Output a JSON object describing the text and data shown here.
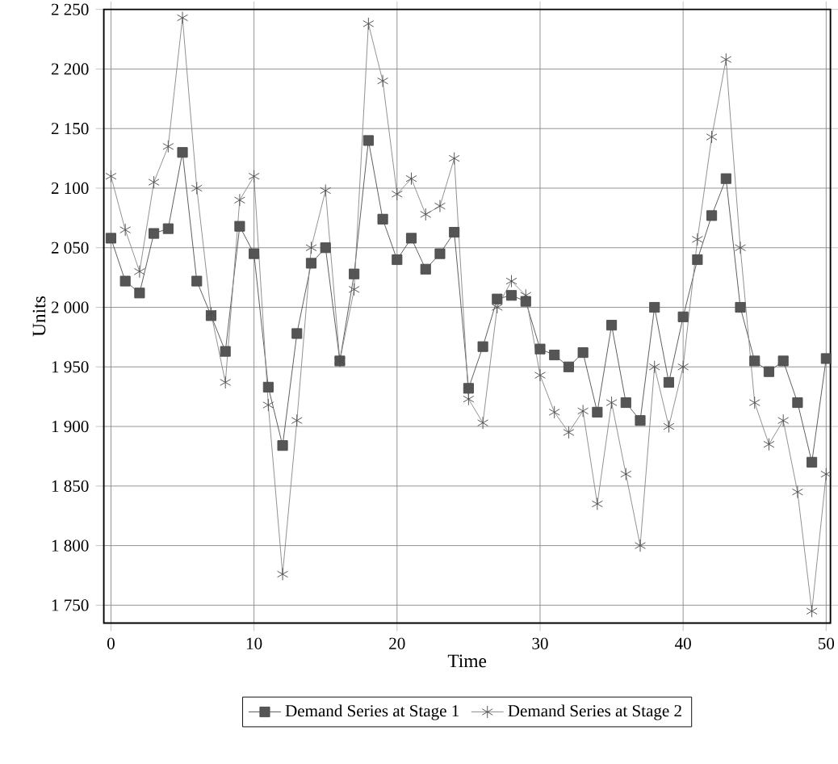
{
  "chart_data": {
    "type": "line",
    "xlabel": "Time",
    "ylabel": "Units",
    "x": [
      0,
      1,
      2,
      3,
      4,
      5,
      6,
      7,
      8,
      9,
      10,
      11,
      12,
      13,
      14,
      15,
      16,
      17,
      18,
      19,
      20,
      21,
      22,
      23,
      24,
      25,
      26,
      27,
      28,
      29,
      30,
      31,
      32,
      33,
      34,
      35,
      36,
      37,
      38,
      39,
      40,
      41,
      42,
      43,
      44,
      45,
      46,
      47,
      48,
      49,
      50
    ],
    "series": [
      {
        "name": "Demand Series at Stage 1",
        "color": "#555555",
        "marker": "square",
        "values": [
          2058,
          2022,
          2012,
          2062,
          2066,
          2130,
          2022,
          1993,
          1963,
          2068,
          2045,
          1933,
          1884,
          1978,
          2037,
          2050,
          1955,
          2028,
          2140,
          2074,
          2040,
          2058,
          2032,
          2045,
          2063,
          1932,
          1967,
          2007,
          2010,
          2005,
          1965,
          1960,
          1950,
          1962,
          1912,
          1985,
          1920,
          1905,
          2000,
          1937,
          1992,
          2040,
          2077,
          2108,
          2000,
          1955,
          1946,
          1955,
          1920,
          1870,
          1957
        ]
      },
      {
        "name": "Demand Series at Stage 2",
        "color": "#8a8a8a",
        "marker": "cross",
        "values": [
          2110,
          2065,
          2030,
          2105,
          2135,
          2243,
          2100,
          1995,
          1937,
          2090,
          2110,
          1918,
          1776,
          1905,
          2050,
          2098,
          1955,
          2015,
          2238,
          2190,
          2095,
          2108,
          2078,
          2085,
          2125,
          1923,
          1903,
          2000,
          2022,
          2010,
          1943,
          1912,
          1895,
          1913,
          1835,
          1920,
          1860,
          1800,
          1950,
          1900,
          1950,
          2057,
          2143,
          2208,
          2050,
          1920,
          1885,
          1905,
          1845,
          1745,
          1860
        ]
      }
    ],
    "xlim": [
      -0.5,
      50.3
    ],
    "ylim": [
      1735,
      2250
    ],
    "xticks": [
      0,
      10,
      20,
      30,
      40,
      50
    ],
    "yticks": [
      {
        "value": 1750,
        "label": "1 750"
      },
      {
        "value": 1800,
        "label": "1 800"
      },
      {
        "value": 1850,
        "label": "1 850"
      },
      {
        "value": 1900,
        "label": "1 900"
      },
      {
        "value": 1950,
        "label": "1 950"
      },
      {
        "value": 2000,
        "label": "2 000"
      },
      {
        "value": 2050,
        "label": "2 050"
      },
      {
        "value": 2100,
        "label": "2 100"
      },
      {
        "value": 2150,
        "label": "2 150"
      },
      {
        "value": 2200,
        "label": "2 200"
      },
      {
        "value": 2250,
        "label": "2 250"
      }
    ],
    "grid": true,
    "legend": "bottom",
    "line_style": "solid"
  }
}
